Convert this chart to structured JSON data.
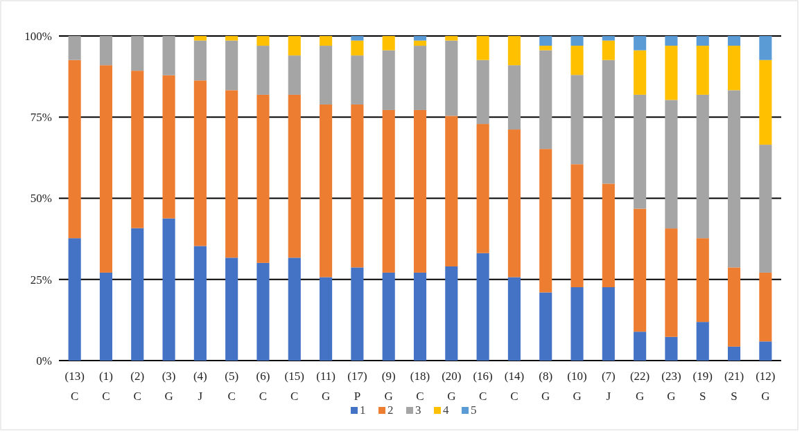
{
  "chart_data": {
    "type": "bar",
    "stacked": true,
    "categories": [
      "(13)\nC",
      "(1)\nC",
      "(2)\nC",
      "(3)\nG",
      "(4)\nJ",
      "(5)\nC",
      "(6)\nC",
      "(15)\nC",
      "(11)\nG",
      "(17)\nP",
      "(9)\nG",
      "(18)\nC",
      "(20)\nG",
      "(16)\nC",
      "(14)\nC",
      "(8)\nG",
      "(10)\nG",
      "(7)\nJ",
      "(22)\nG",
      "(23)\nG",
      "(19)\nS",
      "(21)\nS",
      "(12)\nG"
    ],
    "series": [
      {
        "name": "1",
        "color": "#4472c4",
        "values": [
          37.7,
          27.1,
          40.8,
          43.8,
          35.3,
          31.7,
          30.1,
          31.7,
          25.7,
          28.7,
          27.1,
          27.1,
          29.0,
          33.1,
          25.7,
          21.0,
          22.6,
          22.6,
          8.9,
          7.3,
          11.9,
          4.3,
          5.9
        ]
      },
      {
        "name": "2",
        "color": "#ed7d31",
        "values": [
          54.9,
          63.9,
          48.5,
          44.1,
          51.0,
          51.6,
          51.8,
          50.2,
          53.2,
          50.2,
          50.1,
          50.1,
          46.4,
          39.8,
          45.5,
          44.2,
          37.9,
          31.9,
          37.9,
          33.4,
          25.8,
          24.4,
          21.2
        ]
      },
      {
        "name": "3",
        "color": "#a5a5a5",
        "values": [
          7.4,
          9.0,
          10.7,
          12.1,
          12.3,
          15.3,
          15.1,
          12.1,
          18.1,
          15.1,
          18.4,
          19.8,
          23.2,
          19.7,
          19.8,
          30.4,
          27.5,
          38.1,
          35.1,
          39.6,
          44.2,
          54.6,
          39.4
        ]
      },
      {
        "name": "4",
        "color": "#ffc000",
        "values": [
          0,
          0,
          0,
          0,
          1.4,
          1.4,
          3.0,
          6.0,
          3.0,
          4.6,
          4.4,
          1.6,
          1.4,
          7.4,
          9.0,
          1.4,
          9.0,
          6.0,
          13.7,
          16.7,
          15.1,
          13.7,
          26.1
        ]
      },
      {
        "name": "5",
        "color": "#5b9bd5",
        "values": [
          0,
          0,
          0,
          0,
          0,
          0,
          0,
          0,
          0,
          1.4,
          0,
          1.4,
          0,
          0,
          0,
          3.0,
          3.0,
          1.4,
          4.4,
          3.0,
          3.0,
          3.0,
          7.4
        ]
      }
    ],
    "ylim": [
      0,
      100
    ],
    "yticks": [
      {
        "value": 0,
        "label": "0%"
      },
      {
        "value": 25,
        "label": "25%"
      },
      {
        "value": 50,
        "label": "50%"
      },
      {
        "value": 75,
        "label": "75%"
      },
      {
        "value": 100,
        "label": "100%"
      }
    ],
    "grid": "y",
    "legend": "bottom"
  }
}
